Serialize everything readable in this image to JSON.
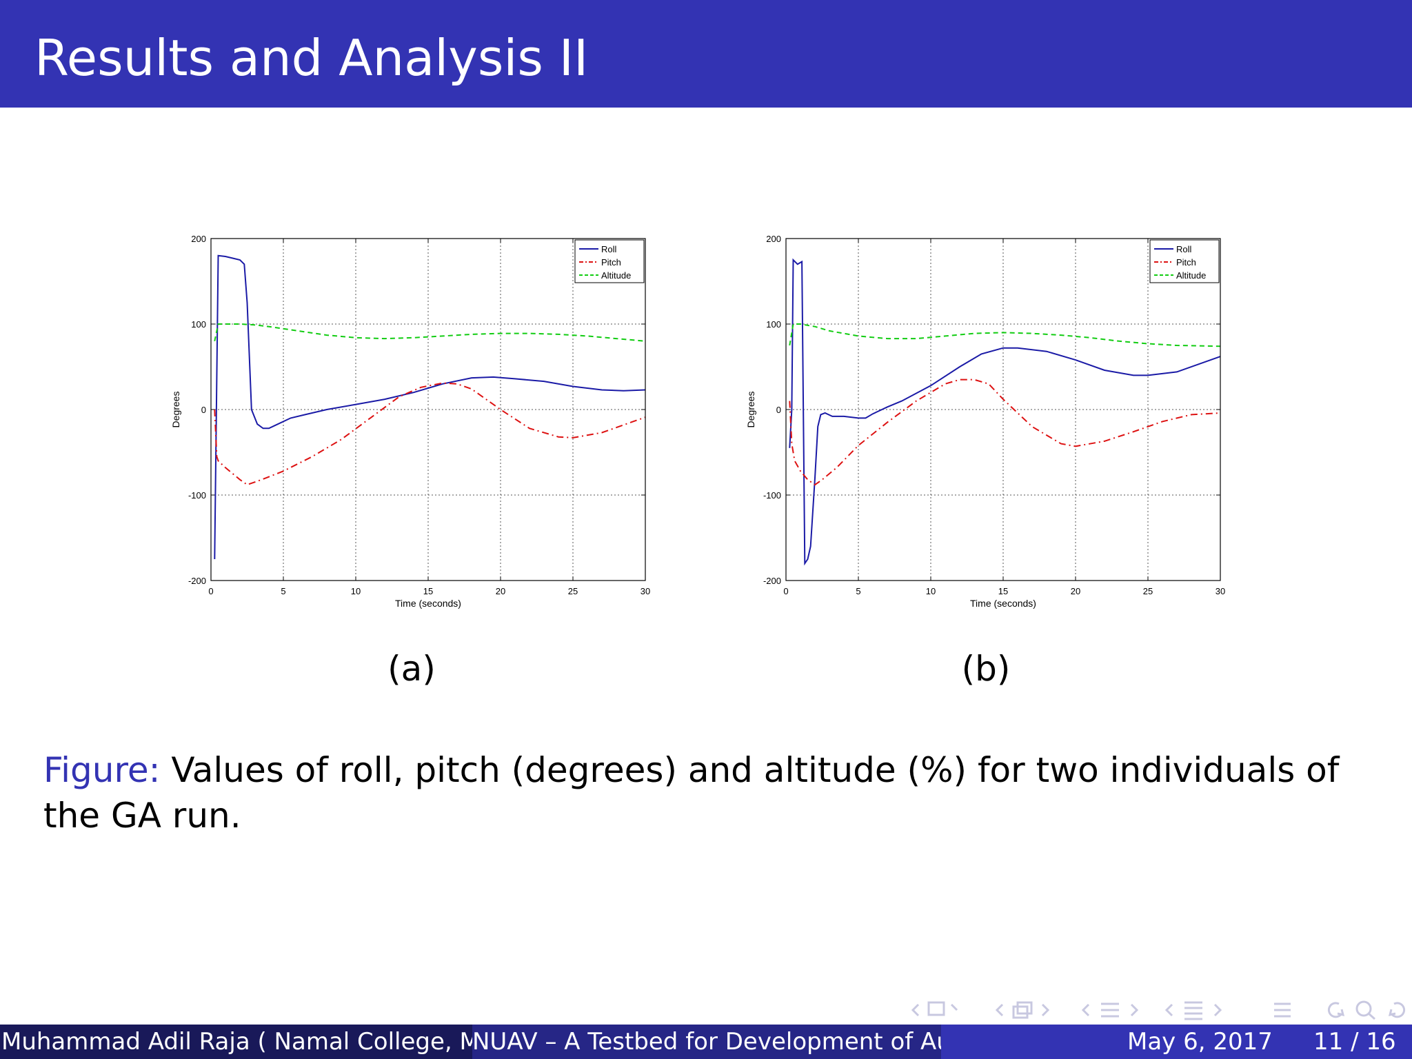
{
  "slide": {
    "title": "Results and Analysis II"
  },
  "figure": {
    "caption_label": "Figure:",
    "caption_text": " Values of roll, pitch (degrees) and altitude (%) for two individuals of the GA run.",
    "subfigure_labels": [
      "(a)",
      "(b)"
    ]
  },
  "footer": {
    "author": "Muhammad Adil Raja ( Namal College, Mian",
    "short_title": "NUAV – A Testbed for Development of Autor",
    "date": "May 6, 2017",
    "page": "11 / 16"
  },
  "colors": {
    "header": "#3333b3",
    "roll": "#1a1aa6",
    "pitch": "#dd1111",
    "altitude": "#11cc11"
  },
  "nav_icons": [
    "nav-frame-icon",
    "nav-subsection-icon",
    "nav-section-icon",
    "nav-slide-icon",
    "nav-menu-icon",
    "nav-search-icon"
  ],
  "chart_data": [
    {
      "type": "line",
      "xlabel": "Time (seconds)",
      "ylabel": "Degrees",
      "xlim": [
        0,
        30
      ],
      "ylim": [
        -200,
        200
      ],
      "xticks": [
        0,
        5,
        10,
        15,
        20,
        25,
        30
      ],
      "yticks": [
        200,
        100,
        0,
        -100,
        -200
      ],
      "grid": true,
      "legend_position": "top-right",
      "series": [
        {
          "name": "Roll",
          "style": "solid",
          "x": [
            0.25,
            0.5,
            1.0,
            1.5,
            2.0,
            2.3,
            2.5,
            2.8,
            3.2,
            3.6,
            4.0,
            4.5,
            5.5,
            6.5,
            8.0,
            10.0,
            12.0,
            14.0,
            16.0,
            18.0,
            19.5,
            21.0,
            23.0,
            25.0,
            27.0,
            28.5,
            30.0
          ],
          "y": [
            -175,
            180,
            179,
            177,
            175,
            170,
            125,
            0,
            -17,
            -22,
            -22,
            -18,
            -10,
            -6,
            0,
            6,
            12,
            20,
            30,
            37,
            38,
            36,
            33,
            27,
            23,
            22,
            23
          ]
        },
        {
          "name": "Pitch",
          "style": "dash-dot",
          "x": [
            0.25,
            0.4,
            0.5,
            1.0,
            2.0,
            2.5,
            3.5,
            5.0,
            7.0,
            9.0,
            11.0,
            13.0,
            14.5,
            16.0,
            17.0,
            18.0,
            20.0,
            22.0,
            24.0,
            25.0,
            27.0,
            29.0,
            30.0
          ],
          "y": [
            0,
            -55,
            -60,
            -68,
            -82,
            -88,
            -82,
            -72,
            -55,
            -35,
            -10,
            15,
            26,
            31,
            30,
            24,
            0,
            -22,
            -32,
            -33,
            -27,
            -15,
            -9
          ]
        },
        {
          "name": "Altitude",
          "style": "dashed",
          "x": [
            0.25,
            0.5,
            1.0,
            2.0,
            3.0,
            4.0,
            6.0,
            8.0,
            10.0,
            12.0,
            14.0,
            16.0,
            18.0,
            20.0,
            22.0,
            24.0,
            26.0,
            28.0,
            30.0
          ],
          "y": [
            80,
            100,
            100,
            100,
            99,
            97,
            92,
            87,
            84,
            83,
            84,
            86,
            88,
            89,
            89,
            88,
            86,
            83,
            80
          ]
        }
      ]
    },
    {
      "type": "line",
      "xlabel": "Time (seconds)",
      "ylabel": "Degrees",
      "xlim": [
        0,
        30
      ],
      "ylim": [
        -200,
        200
      ],
      "xticks": [
        0,
        5,
        10,
        15,
        20,
        25,
        30
      ],
      "yticks": [
        200,
        100,
        0,
        -100,
        -200
      ],
      "grid": true,
      "legend_position": "top-right",
      "series": [
        {
          "name": "Roll",
          "style": "solid",
          "x": [
            0.25,
            0.4,
            0.5,
            0.8,
            1.1,
            1.3,
            1.5,
            1.7,
            2.0,
            2.2,
            2.4,
            2.7,
            3.2,
            4.0,
            5.0,
            5.5,
            6.0,
            7.0,
            8.0,
            10.0,
            12.0,
            13.5,
            15.0,
            16.0,
            18.0,
            20.0,
            22.0,
            24.0,
            25.0,
            27.0,
            30.0
          ],
          "y": [
            -45,
            0,
            175,
            170,
            173,
            -180,
            -175,
            -160,
            -80,
            -20,
            -6,
            -4,
            -8,
            -8,
            -10,
            -10,
            -5,
            3,
            10,
            28,
            50,
            65,
            72,
            72,
            68,
            58,
            46,
            40,
            40,
            44,
            62
          ]
        },
        {
          "name": "Pitch",
          "style": "dash-dot",
          "x": [
            0.25,
            0.4,
            0.6,
            1.0,
            1.5,
            2.0,
            2.5,
            3.5,
            5.0,
            7.0,
            9.0,
            10.0,
            11.0,
            12.0,
            13.0,
            14.0,
            15.0,
            17.0,
            19.0,
            20.0,
            22.0,
            24.0,
            26.0,
            28.0,
            30.0
          ],
          "y": [
            10,
            -40,
            -60,
            -72,
            -82,
            -88,
            -82,
            -68,
            -42,
            -15,
            10,
            20,
            30,
            35,
            35,
            30,
            12,
            -20,
            -40,
            -43,
            -37,
            -26,
            -14,
            -6,
            -4
          ]
        },
        {
          "name": "Altitude",
          "style": "dashed",
          "x": [
            0.25,
            0.5,
            1.0,
            2.0,
            3.0,
            5.0,
            7.0,
            9.0,
            11.0,
            13.0,
            15.0,
            17.0,
            19.0,
            21.0,
            23.0,
            25.0,
            27.0,
            30.0
          ],
          "y": [
            75,
            100,
            100,
            97,
            92,
            86,
            83,
            83,
            86,
            89,
            90,
            89,
            87,
            84,
            80,
            77,
            75,
            74
          ]
        }
      ]
    }
  ]
}
